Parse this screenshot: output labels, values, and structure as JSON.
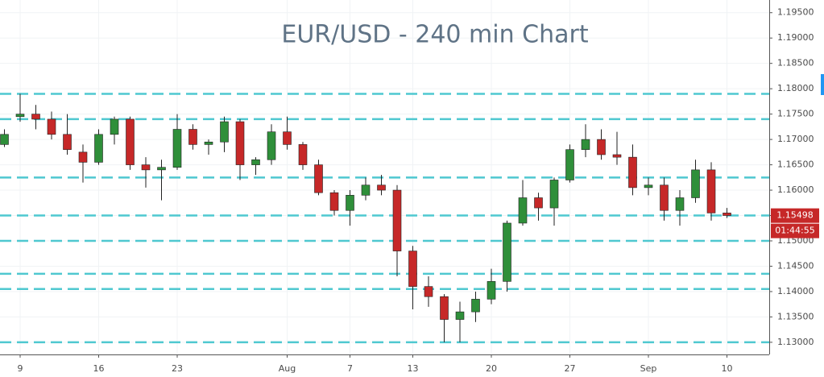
{
  "chart_data": {
    "type": "candlestick",
    "title": "EUR/USD - 240 min Chart",
    "categories": [
      null,
      "9",
      null,
      null,
      null,
      null,
      "16",
      null,
      null,
      null,
      null,
      "23",
      null,
      null,
      null,
      null,
      null,
      null,
      "Aug",
      null,
      null,
      null,
      "7",
      null,
      null,
      null,
      "13",
      null,
      null,
      null,
      null,
      "20",
      null,
      null,
      null,
      null,
      "27",
      null,
      null,
      null,
      null,
      "Sep",
      null,
      null,
      null,
      null,
      "10"
    ],
    "open": [
      1.169,
      1.1745,
      1.175,
      1.174,
      1.171,
      1.1675,
      1.1655,
      1.171,
      1.174,
      1.165,
      1.164,
      1.1645,
      1.172,
      1.169,
      1.1695,
      1.1735,
      1.165,
      1.166,
      1.1715,
      1.169,
      1.165,
      1.1595,
      1.156,
      1.159,
      1.161,
      1.16,
      1.148,
      1.141,
      1.139,
      1.1345,
      1.136,
      1.1385,
      1.142,
      1.1535,
      1.1585,
      1.1565,
      1.162,
      1.168,
      1.17,
      1.167,
      1.1665,
      1.1605,
      1.161,
      1.156,
      1.1585,
      1.164,
      1.1555
    ],
    "high": [
      1.172,
      1.179,
      1.1768,
      1.1755,
      1.175,
      1.169,
      1.172,
      1.1745,
      1.1745,
      1.1665,
      1.166,
      1.175,
      1.173,
      1.17,
      1.1745,
      1.174,
      1.1665,
      1.173,
      1.1745,
      1.1695,
      1.166,
      1.16,
      1.16,
      1.1625,
      1.163,
      1.161,
      1.149,
      1.143,
      1.1395,
      1.138,
      1.14,
      1.1445,
      1.154,
      1.162,
      1.1595,
      1.1625,
      1.169,
      1.173,
      1.172,
      1.1715,
      1.169,
      1.1625,
      1.1625,
      1.16,
      1.166,
      1.1655,
      1.1565
    ],
    "low": [
      1.1685,
      1.1735,
      1.172,
      1.17,
      1.167,
      1.1615,
      1.165,
      1.169,
      1.164,
      1.1605,
      1.158,
      1.164,
      1.168,
      1.167,
      1.1675,
      1.162,
      1.163,
      1.165,
      1.168,
      1.164,
      1.159,
      1.155,
      1.153,
      1.158,
      1.159,
      1.143,
      1.1365,
      1.137,
      1.13,
      1.13,
      1.134,
      1.1375,
      1.14,
      1.153,
      1.154,
      1.153,
      1.1615,
      1.1665,
      1.166,
      1.165,
      1.159,
      1.159,
      1.154,
      1.153,
      1.1575,
      1.154,
      1.1545
    ],
    "close": [
      1.171,
      1.175,
      1.174,
      1.171,
      1.168,
      1.1655,
      1.171,
      1.174,
      1.165,
      1.164,
      1.1645,
      1.172,
      1.169,
      1.1695,
      1.1735,
      1.165,
      1.166,
      1.1715,
      1.169,
      1.165,
      1.1595,
      1.156,
      1.159,
      1.161,
      1.16,
      1.148,
      1.141,
      1.139,
      1.1345,
      1.136,
      1.1385,
      1.142,
      1.1535,
      1.1585,
      1.1565,
      1.162,
      1.168,
      1.17,
      1.167,
      1.1665,
      1.1605,
      1.161,
      1.156,
      1.1585,
      1.164,
      1.1555,
      1.155
    ],
    "up_color": "#2f8f3a",
    "down_color": "#c62828",
    "levels": [
      1.179,
      1.174,
      1.1625,
      1.155,
      1.15,
      1.1435,
      1.1405,
      1.13
    ],
    "level_color": "#4fc8d0",
    "ylim": [
      1.1276,
      1.1975
    ],
    "yticks": [
      {
        "value": 1.13,
        "label": "1.13000"
      },
      {
        "value": 1.135,
        "label": "1.13500"
      },
      {
        "value": 1.14,
        "label": "1.14000"
      },
      {
        "value": 1.145,
        "label": "1.14500"
      },
      {
        "value": 1.15,
        "label": "1.15000"
      },
      {
        "value": 1.155,
        "label": "1.15500"
      },
      {
        "value": 1.16,
        "label": "1.16000"
      },
      {
        "value": 1.165,
        "label": "1.16500"
      },
      {
        "value": 1.17,
        "label": "1.17000"
      },
      {
        "value": 1.175,
        "label": "1.17500"
      },
      {
        "value": 1.18,
        "label": "1.18000"
      },
      {
        "value": 1.185,
        "label": "1.18500"
      },
      {
        "value": 1.19,
        "label": "1.19000"
      },
      {
        "value": 1.195,
        "label": "1.19500"
      }
    ],
    "last_price": 1.15498,
    "countdown": "01:44:55",
    "grid": true
  }
}
